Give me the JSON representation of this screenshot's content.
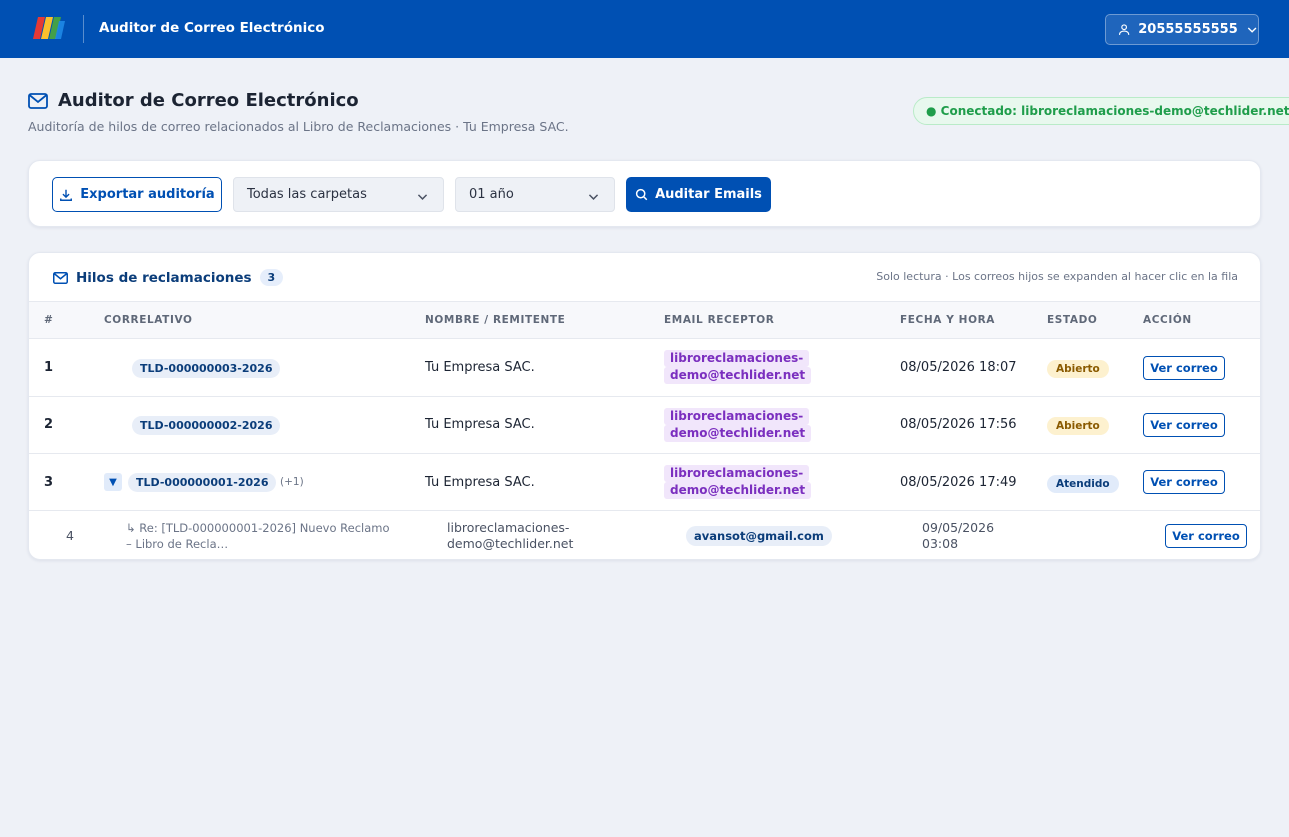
{
  "topbar": {
    "app_title": "Auditor de Correo Electrónico",
    "user": "20555555555",
    "bg_color": "#0050b3"
  },
  "page": {
    "title": "Auditor de Correo Electrónico",
    "subtitle": "Auditoría de hilos de correo relacionados al Libro de Reclamaciones · Tu Empresa SAC.",
    "connection": "● Conectado: libroreclamaciones-demo@techlider.net"
  },
  "toolbar": {
    "export_label": "Exportar auditoría",
    "folder_select": "Todas las carpetas",
    "period_select": "01 año",
    "audit_label": "Auditar Emails"
  },
  "threads": {
    "title": "Hilos de reclamaciones",
    "count": "3",
    "hint": "Solo lectura · Los correos hijos se expanden al hacer clic en la fila",
    "columns": [
      "#",
      "CORRELATIVO",
      "NOMBRE / REMITENTE",
      "EMAIL RECEPTOR",
      "FECHA Y HORA",
      "ESTADO",
      "ACCIÓN"
    ],
    "rows": [
      {
        "num": "1",
        "correlativo": "TLD-000000003-2026",
        "nombre": "Tu Empresa SAC.",
        "email_1": "libroreclamaciones-",
        "email_2": "demo@techlider.net",
        "fecha": "08/05/2026 18:07",
        "estado": "Abierto",
        "accion": "Ver correo"
      },
      {
        "num": "2",
        "correlativo": "TLD-000000002-2026",
        "nombre": "Tu Empresa SAC.",
        "email_1": "libroreclamaciones-",
        "email_2": "demo@techlider.net",
        "fecha": "08/05/2026 17:56",
        "estado": "Abierto",
        "accion": "Ver correo"
      },
      {
        "num": "3",
        "correlativo": "TLD-000000001-2026",
        "extra": "(+1)",
        "toggle": "▼",
        "nombre": "Tu Empresa SAC.",
        "email_1": "libroreclamaciones-",
        "email_2": "demo@techlider.net",
        "fecha": "08/05/2026 17:49",
        "estado": "Atendido",
        "accion": "Ver correo"
      }
    ],
    "child": {
      "num": "4",
      "subject_1": "↳  Re: [TLD-000000001-2026] Nuevo Reclamo",
      "subject_2": "– Libro de Recla…",
      "sender_1": "libroreclamaciones-",
      "sender_2": "demo@techlider.net",
      "receiver": "avansot@gmail.com",
      "fecha_1": "09/05/2026",
      "fecha_2": "03:08",
      "accion": "Ver correo"
    }
  }
}
